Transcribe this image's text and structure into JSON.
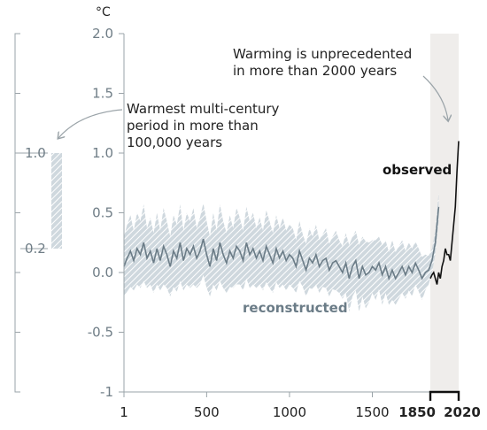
{
  "chart_data": {
    "type": "line",
    "unit": "°C",
    "yticks": [
      "2.0",
      "1.5",
      "1.0",
      "0.5",
      "0.0",
      "-0.5",
      "-1"
    ],
    "ylim": [
      -1,
      2
    ],
    "xticks": [
      "1",
      "500",
      "1000",
      "1500"
    ],
    "xticks_bold": [
      "1850",
      "2020"
    ],
    "xlim": [
      1,
      2020
    ],
    "shaded_period": [
      1850,
      2020
    ],
    "series": [
      {
        "name": "reconstructed",
        "color": "#6b7c87",
        "x": [
          1,
          20,
          40,
          60,
          80,
          100,
          120,
          140,
          160,
          180,
          200,
          220,
          240,
          260,
          280,
          300,
          320,
          340,
          360,
          380,
          400,
          420,
          440,
          460,
          480,
          500,
          520,
          540,
          560,
          580,
          600,
          620,
          640,
          660,
          680,
          700,
          720,
          740,
          760,
          780,
          800,
          820,
          840,
          860,
          880,
          900,
          920,
          940,
          960,
          980,
          1000,
          1020,
          1040,
          1060,
          1080,
          1100,
          1120,
          1140,
          1160,
          1180,
          1200,
          1220,
          1240,
          1260,
          1280,
          1300,
          1320,
          1340,
          1360,
          1380,
          1400,
          1420,
          1440,
          1460,
          1480,
          1500,
          1520,
          1540,
          1560,
          1580,
          1600,
          1620,
          1640,
          1660,
          1680,
          1700,
          1720,
          1740,
          1760,
          1780,
          1800,
          1820,
          1840,
          1860,
          1880,
          1900
        ],
        "y": [
          0.05,
          0.12,
          0.18,
          0.1,
          0.2,
          0.15,
          0.25,
          0.12,
          0.18,
          0.08,
          0.2,
          0.1,
          0.22,
          0.15,
          0.05,
          0.18,
          0.12,
          0.25,
          0.1,
          0.2,
          0.15,
          0.22,
          0.12,
          0.18,
          0.28,
          0.15,
          0.05,
          0.2,
          0.1,
          0.25,
          0.15,
          0.08,
          0.18,
          0.12,
          0.22,
          0.18,
          0.1,
          0.25,
          0.15,
          0.2,
          0.12,
          0.18,
          0.1,
          0.22,
          0.15,
          0.08,
          0.2,
          0.12,
          0.18,
          0.1,
          0.15,
          0.12,
          0.05,
          0.18,
          0.1,
          0.02,
          0.12,
          0.08,
          0.15,
          0.05,
          0.1,
          0.12,
          0.02,
          0.08,
          0.1,
          0.05,
          0.0,
          0.08,
          -0.05,
          0.05,
          0.1,
          -0.05,
          0.05,
          -0.02,
          0.0,
          0.05,
          0.02,
          0.08,
          -0.02,
          0.05,
          -0.05,
          0.02,
          -0.05,
          0.0,
          0.05,
          -0.02,
          0.05,
          0.0,
          0.08,
          0.02,
          -0.05,
          0.0,
          0.02,
          0.1,
          0.25,
          0.55
        ],
        "uncertainty": [
          0.25,
          0.28,
          0.3,
          0.25,
          0.3,
          0.28,
          0.32,
          0.25,
          0.28,
          0.25,
          0.3,
          0.25,
          0.32,
          0.28,
          0.25,
          0.3,
          0.28,
          0.32,
          0.25,
          0.3,
          0.28,
          0.32,
          0.25,
          0.28,
          0.3,
          0.28,
          0.25,
          0.3,
          0.25,
          0.32,
          0.28,
          0.25,
          0.3,
          0.25,
          0.32,
          0.28,
          0.25,
          0.3,
          0.28,
          0.3,
          0.25,
          0.28,
          0.25,
          0.3,
          0.28,
          0.25,
          0.28,
          0.25,
          0.28,
          0.25,
          0.25,
          0.25,
          0.22,
          0.25,
          0.22,
          0.22,
          0.25,
          0.22,
          0.25,
          0.22,
          0.22,
          0.25,
          0.22,
          0.22,
          0.25,
          0.22,
          0.22,
          0.25,
          0.28,
          0.25,
          0.25,
          0.28,
          0.25,
          0.28,
          0.25,
          0.22,
          0.25,
          0.22,
          0.25,
          0.22,
          0.22,
          0.25,
          0.22,
          0.22,
          0.22,
          0.2,
          0.2,
          0.2,
          0.18,
          0.18,
          0.18,
          0.15,
          0.12,
          0.1,
          0.1,
          0.12
        ]
      },
      {
        "name": "observed",
        "color": "#111111",
        "x": [
          1850,
          1860,
          1870,
          1880,
          1890,
          1900,
          1910,
          1920,
          1930,
          1940,
          1950,
          1960,
          1970,
          1980,
          1990,
          2000,
          2010,
          2020
        ],
        "y": [
          -0.05,
          -0.02,
          0.0,
          -0.05,
          -0.1,
          0.0,
          -0.05,
          0.05,
          0.1,
          0.2,
          0.15,
          0.15,
          0.1,
          0.25,
          0.4,
          0.55,
          0.85,
          1.1
        ]
      }
    ],
    "side_bar": {
      "label_top": "1.0",
      "label_bottom": "0.2",
      "top": 1.0,
      "bottom": 0.2
    },
    "annotations": {
      "warmest_lines": [
        "Warmest multi-century",
        "period in more than",
        "100,000 years"
      ],
      "unprecedented_lines": [
        "Warming is unprecedented",
        "in more than 2000 years"
      ],
      "observed": "observed",
      "reconstructed": "reconstructed"
    }
  }
}
